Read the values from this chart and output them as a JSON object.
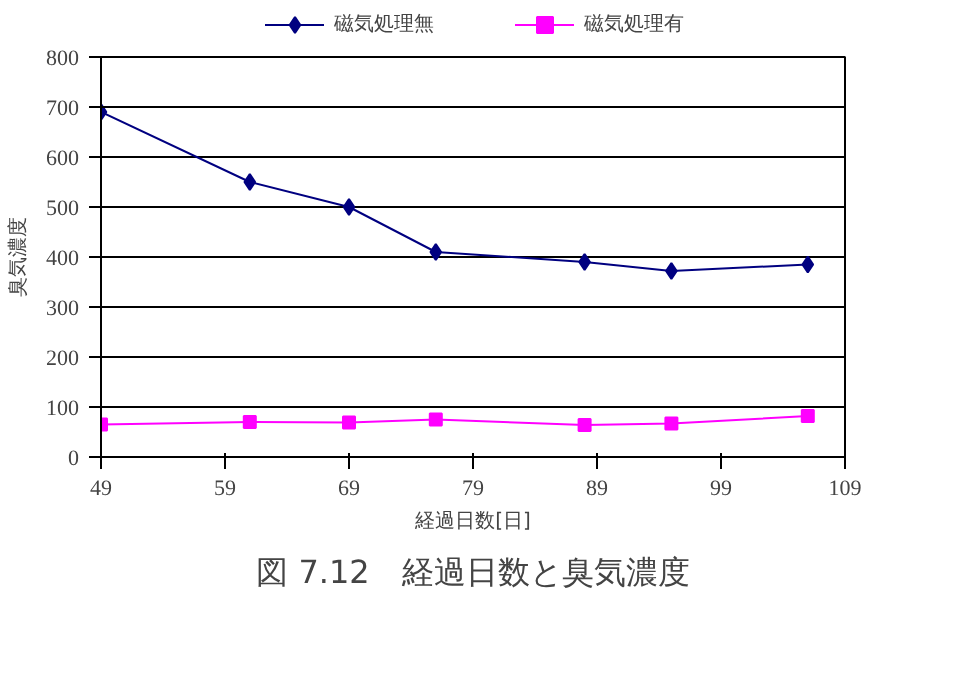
{
  "chart_data": {
    "type": "line",
    "title": "図 7.12　経過日数と臭気濃度",
    "xlabel": "経過日数[日]",
    "ylabel": "臭気濃度",
    "x": [
      49,
      61,
      69,
      76,
      88,
      95,
      106
    ],
    "series": [
      {
        "name": "磁気処理無",
        "color": "#000080",
        "marker": "diamond",
        "values": [
          690,
          550,
          500,
          410,
          390,
          372,
          385
        ]
      },
      {
        "name": "磁気処理有",
        "color": "#ff00ff",
        "marker": "square",
        "values": [
          65,
          70,
          69,
          75,
          64,
          67,
          82
        ]
      }
    ],
    "xlim": [
      49,
      109
    ],
    "xticks": [
      49,
      59,
      69,
      79,
      89,
      99,
      109
    ],
    "ylim": [
      0,
      800
    ],
    "yticks": [
      0,
      100,
      200,
      300,
      400,
      500,
      600,
      700,
      800
    ],
    "grid": "y",
    "legend": "top",
    "line_style": "solid"
  }
}
